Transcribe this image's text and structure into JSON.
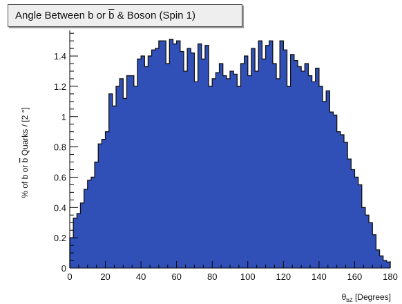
{
  "chart_data": {
    "type": "bar",
    "title": "Angle Between b or ̅b & Boson (Spin 1)",
    "title_parts": {
      "pre": "Angle Between b or ",
      "bbar": "b",
      "post": " & Boson (Spin 1)"
    },
    "xlabel": "θ_bZ [Degrees]",
    "xlabel_parts": {
      "theta": "θ",
      "sub": "bZ",
      "unit": " [Degrees]"
    },
    "ylabel": "% of b or ̅b Quarks / [2 °]",
    "ylabel_parts": {
      "pre": "% of b or ",
      "bbar": "b",
      "post": " Quarks / [2 °]"
    },
    "xlim": [
      0,
      180
    ],
    "ylim": [
      0,
      1.56
    ],
    "bin_width": 2,
    "x_ticks": [
      0,
      20,
      40,
      60,
      80,
      100,
      120,
      140,
      160,
      180
    ],
    "y_ticks": [
      0,
      0.2,
      0.4,
      0.6,
      0.8,
      1,
      1.2,
      1.4
    ],
    "y_tick_labels": [
      "0",
      "0.2",
      "0.4",
      "0.6",
      "0.8",
      "1",
      "1.2",
      "1.4"
    ],
    "grid": false,
    "fill_color": "#3050b8",
    "edge_color": "#111111",
    "bin_edges_start": 0,
    "values": [
      0.2,
      0.33,
      0.36,
      0.43,
      0.52,
      0.58,
      0.6,
      0.7,
      0.82,
      0.85,
      0.9,
      1.15,
      1.07,
      1.2,
      1.25,
      1.12,
      1.27,
      1.27,
      1.2,
      1.38,
      1.4,
      1.33,
      1.4,
      1.44,
      1.45,
      1.5,
      1.5,
      1.35,
      1.51,
      1.48,
      1.5,
      1.43,
      1.3,
      1.45,
      1.42,
      1.23,
      1.48,
      1.38,
      1.47,
      1.2,
      1.25,
      1.29,
      1.35,
      1.27,
      1.25,
      1.3,
      1.28,
      1.2,
      1.35,
      1.4,
      1.27,
      1.45,
      1.3,
      1.5,
      1.38,
      1.47,
      1.5,
      1.35,
      1.25,
      1.5,
      1.44,
      1.2,
      1.41,
      1.37,
      1.33,
      1.3,
      1.35,
      1.27,
      1.23,
      1.32,
      1.2,
      1.1,
      1.17,
      1.03,
      1.01,
      0.9,
      0.88,
      0.83,
      0.72,
      0.65,
      0.6,
      0.55,
      0.4,
      0.35,
      0.3,
      0.22,
      0.12,
      0.08,
      0.05,
      0.04
    ]
  }
}
